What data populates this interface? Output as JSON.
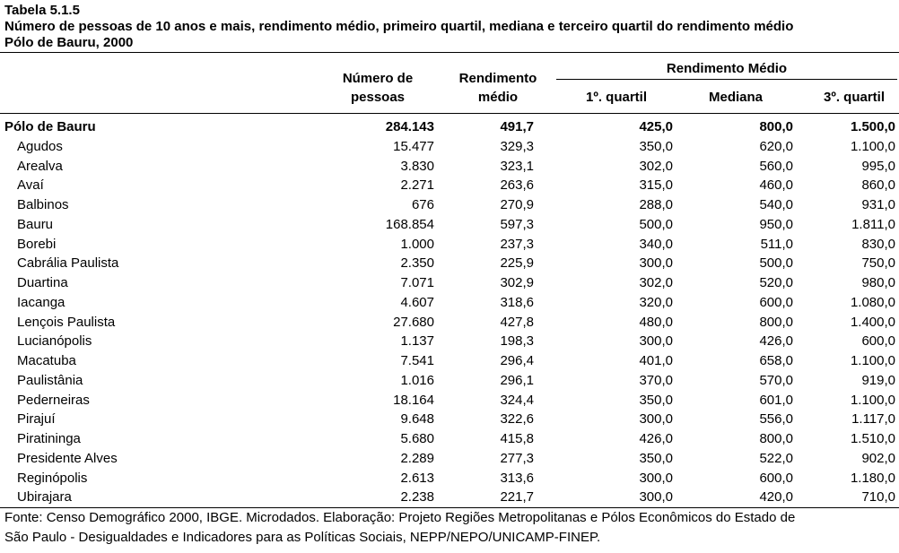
{
  "header": {
    "title": "Tabela 5.1.5",
    "subtitle": "Número de pessoas de 10 anos e mais, rendimento médio, primeiro quartil, mediana e terceiro quartil do rendimento médio",
    "region": "Pólo de Bauru, 2000"
  },
  "table": {
    "group_header": "Rendimento Médio",
    "columns": [
      [
        "Número de",
        "pessoas"
      ],
      [
        "Rendimento",
        "médio"
      ],
      [
        "1º. quartil"
      ],
      [
        "Mediana"
      ],
      [
        "3º. quartil"
      ]
    ],
    "rows": [
      [
        "Pólo de Bauru",
        "284.143",
        "491,7",
        "425,0",
        "800,0",
        "1.500,0"
      ],
      [
        "Agudos",
        "15.477",
        "329,3",
        "350,0",
        "620,0",
        "1.100,0"
      ],
      [
        "Arealva",
        "3.830",
        "323,1",
        "302,0",
        "560,0",
        "995,0"
      ],
      [
        "Avaí",
        "2.271",
        "263,6",
        "315,0",
        "460,0",
        "860,0"
      ],
      [
        "Balbinos",
        "676",
        "270,9",
        "288,0",
        "540,0",
        "931,0"
      ],
      [
        "Bauru",
        "168.854",
        "597,3",
        "500,0",
        "950,0",
        "1.811,0"
      ],
      [
        "Borebi",
        "1.000",
        "237,3",
        "340,0",
        "511,0",
        "830,0"
      ],
      [
        "Cabrália Paulista",
        "2.350",
        "225,9",
        "300,0",
        "500,0",
        "750,0"
      ],
      [
        "Duartina",
        "7.071",
        "302,9",
        "302,0",
        "520,0",
        "980,0"
      ],
      [
        "Iacanga",
        "4.607",
        "318,6",
        "320,0",
        "600,0",
        "1.080,0"
      ],
      [
        "Lençois Paulista",
        "27.680",
        "427,8",
        "480,0",
        "800,0",
        "1.400,0"
      ],
      [
        "Lucianópolis",
        "1.137",
        "198,3",
        "300,0",
        "426,0",
        "600,0"
      ],
      [
        "Macatuba",
        "7.541",
        "296,4",
        "401,0",
        "658,0",
        "1.100,0"
      ],
      [
        "Paulistânia",
        "1.016",
        "296,1",
        "370,0",
        "570,0",
        "919,0"
      ],
      [
        "Pederneiras",
        "18.164",
        "324,4",
        "350,0",
        "601,0",
        "1.100,0"
      ],
      [
        "Pirajuí",
        "9.648",
        "322,6",
        "300,0",
        "556,0",
        "1.117,0"
      ],
      [
        "Piratininga",
        "5.680",
        "415,8",
        "426,0",
        "800,0",
        "1.510,0"
      ],
      [
        "Presidente Alves",
        "2.289",
        "277,3",
        "350,0",
        "522,0",
        "902,0"
      ],
      [
        "Reginópolis",
        "2.613",
        "313,6",
        "300,0",
        "600,0",
        "1.180,0"
      ],
      [
        "Ubirajara",
        "2.238",
        "221,7",
        "300,0",
        "420,0",
        "710,0"
      ]
    ]
  },
  "footer": {
    "source": [
      "Fonte: Censo Demográfico 2000, IBGE. Microdados. Elaboração: Projeto Regiões Metropolitanas e Pólos Econômicos do Estado de",
      "São Paulo - Desigualdades e Indicadores para as Políticas Sociais, NEPP/NEPO/UNICAMP-FINEP."
    ]
  }
}
